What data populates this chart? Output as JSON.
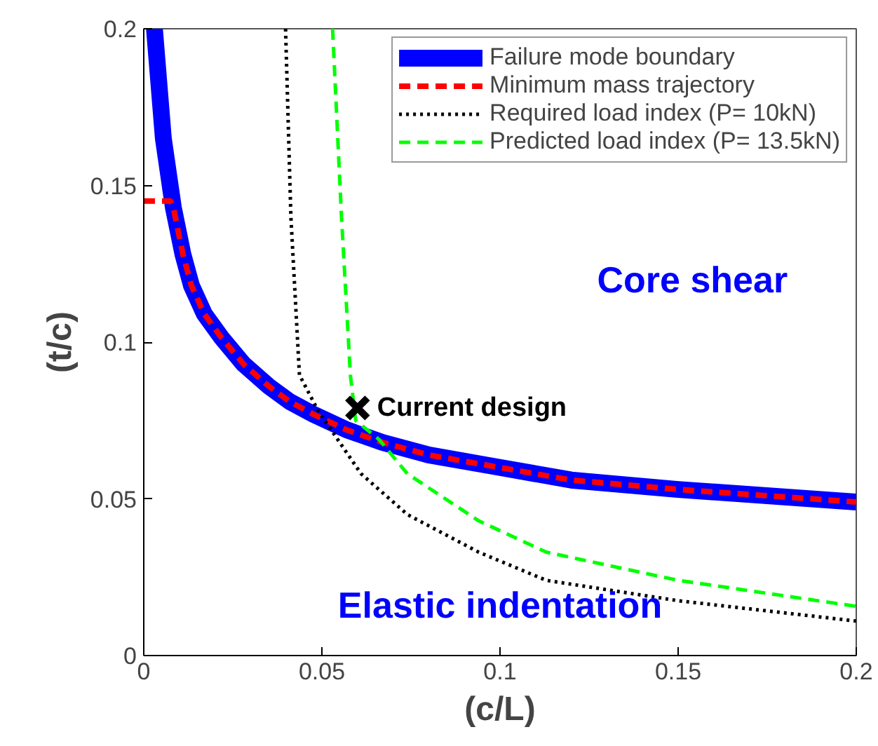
{
  "chart_data": {
    "type": "line",
    "xlabel": "(c/L)",
    "ylabel": "(t/c)",
    "xlim": [
      0,
      0.2
    ],
    "ylim": [
      0,
      0.2
    ],
    "xticks": [
      0,
      0.05,
      0.1,
      0.15,
      0.2
    ],
    "yticks": [
      0,
      0.05,
      0.1,
      0.15,
      0.2
    ],
    "grid": false,
    "legend": "top right",
    "series": [
      {
        "name": "Failure mode boundary",
        "color": "#0000ff",
        "line_style": "solid",
        "x": [
          0.003,
          0.0055,
          0.0083,
          0.011,
          0.0134,
          0.017,
          0.0217,
          0.028,
          0.035,
          0.041,
          0.0476,
          0.057,
          0.067,
          0.08,
          0.1,
          0.12,
          0.15,
          0.2
        ],
        "values": [
          0.2,
          0.165,
          0.143,
          0.128,
          0.118,
          0.109,
          0.1016,
          0.093,
          0.086,
          0.081,
          0.077,
          0.072,
          0.068,
          0.064,
          0.06,
          0.056,
          0.053,
          0.049
        ]
      },
      {
        "name": "Minimum mass trajectory",
        "color": "#ff0000",
        "line_style": "dashed",
        "x": [
          0,
          0.0075,
          0.0083,
          0.011,
          0.0134,
          0.017,
          0.0217,
          0.028,
          0.035,
          0.041,
          0.0476,
          0.057,
          0.067,
          0.08,
          0.1,
          0.12,
          0.15,
          0.2
        ],
        "values": [
          0.145,
          0.145,
          0.143,
          0.128,
          0.118,
          0.109,
          0.1016,
          0.093,
          0.086,
          0.081,
          0.077,
          0.072,
          0.068,
          0.064,
          0.06,
          0.056,
          0.053,
          0.049
        ]
      },
      {
        "name": "Required load index (P= 10kN)",
        "color": "#000000",
        "line_style": "dotted",
        "x": [
          0.0398,
          0.0413,
          0.0437,
          0.049,
          0.061,
          0.074,
          0.094,
          0.113,
          0.15,
          0.2
        ],
        "values": [
          0.2,
          0.14,
          0.0895,
          0.078,
          0.058,
          0.045,
          0.033,
          0.024,
          0.0175,
          0.011
        ]
      },
      {
        "name": "Predicted load index (P= 13.5kN)",
        "color": "#00ff00",
        "line_style": "dashed",
        "x": [
          0.053,
          0.0555,
          0.058,
          0.0595,
          0.066,
          0.074,
          0.094,
          0.113,
          0.15,
          0.2
        ],
        "values": [
          0.2,
          0.14,
          0.0895,
          0.075,
          0.069,
          0.058,
          0.043,
          0.033,
          0.024,
          0.0157
        ]
      },
      {
        "type": "scatter",
        "marker": "cross",
        "color": "#000000",
        "x": [
          0.06
        ],
        "values": [
          0.079
        ]
      }
    ],
    "annotations": [
      {
        "text": "Current design",
        "x": 0.06,
        "y": 0.079
      },
      "Core shear",
      "Elastic indentation"
    ]
  }
}
